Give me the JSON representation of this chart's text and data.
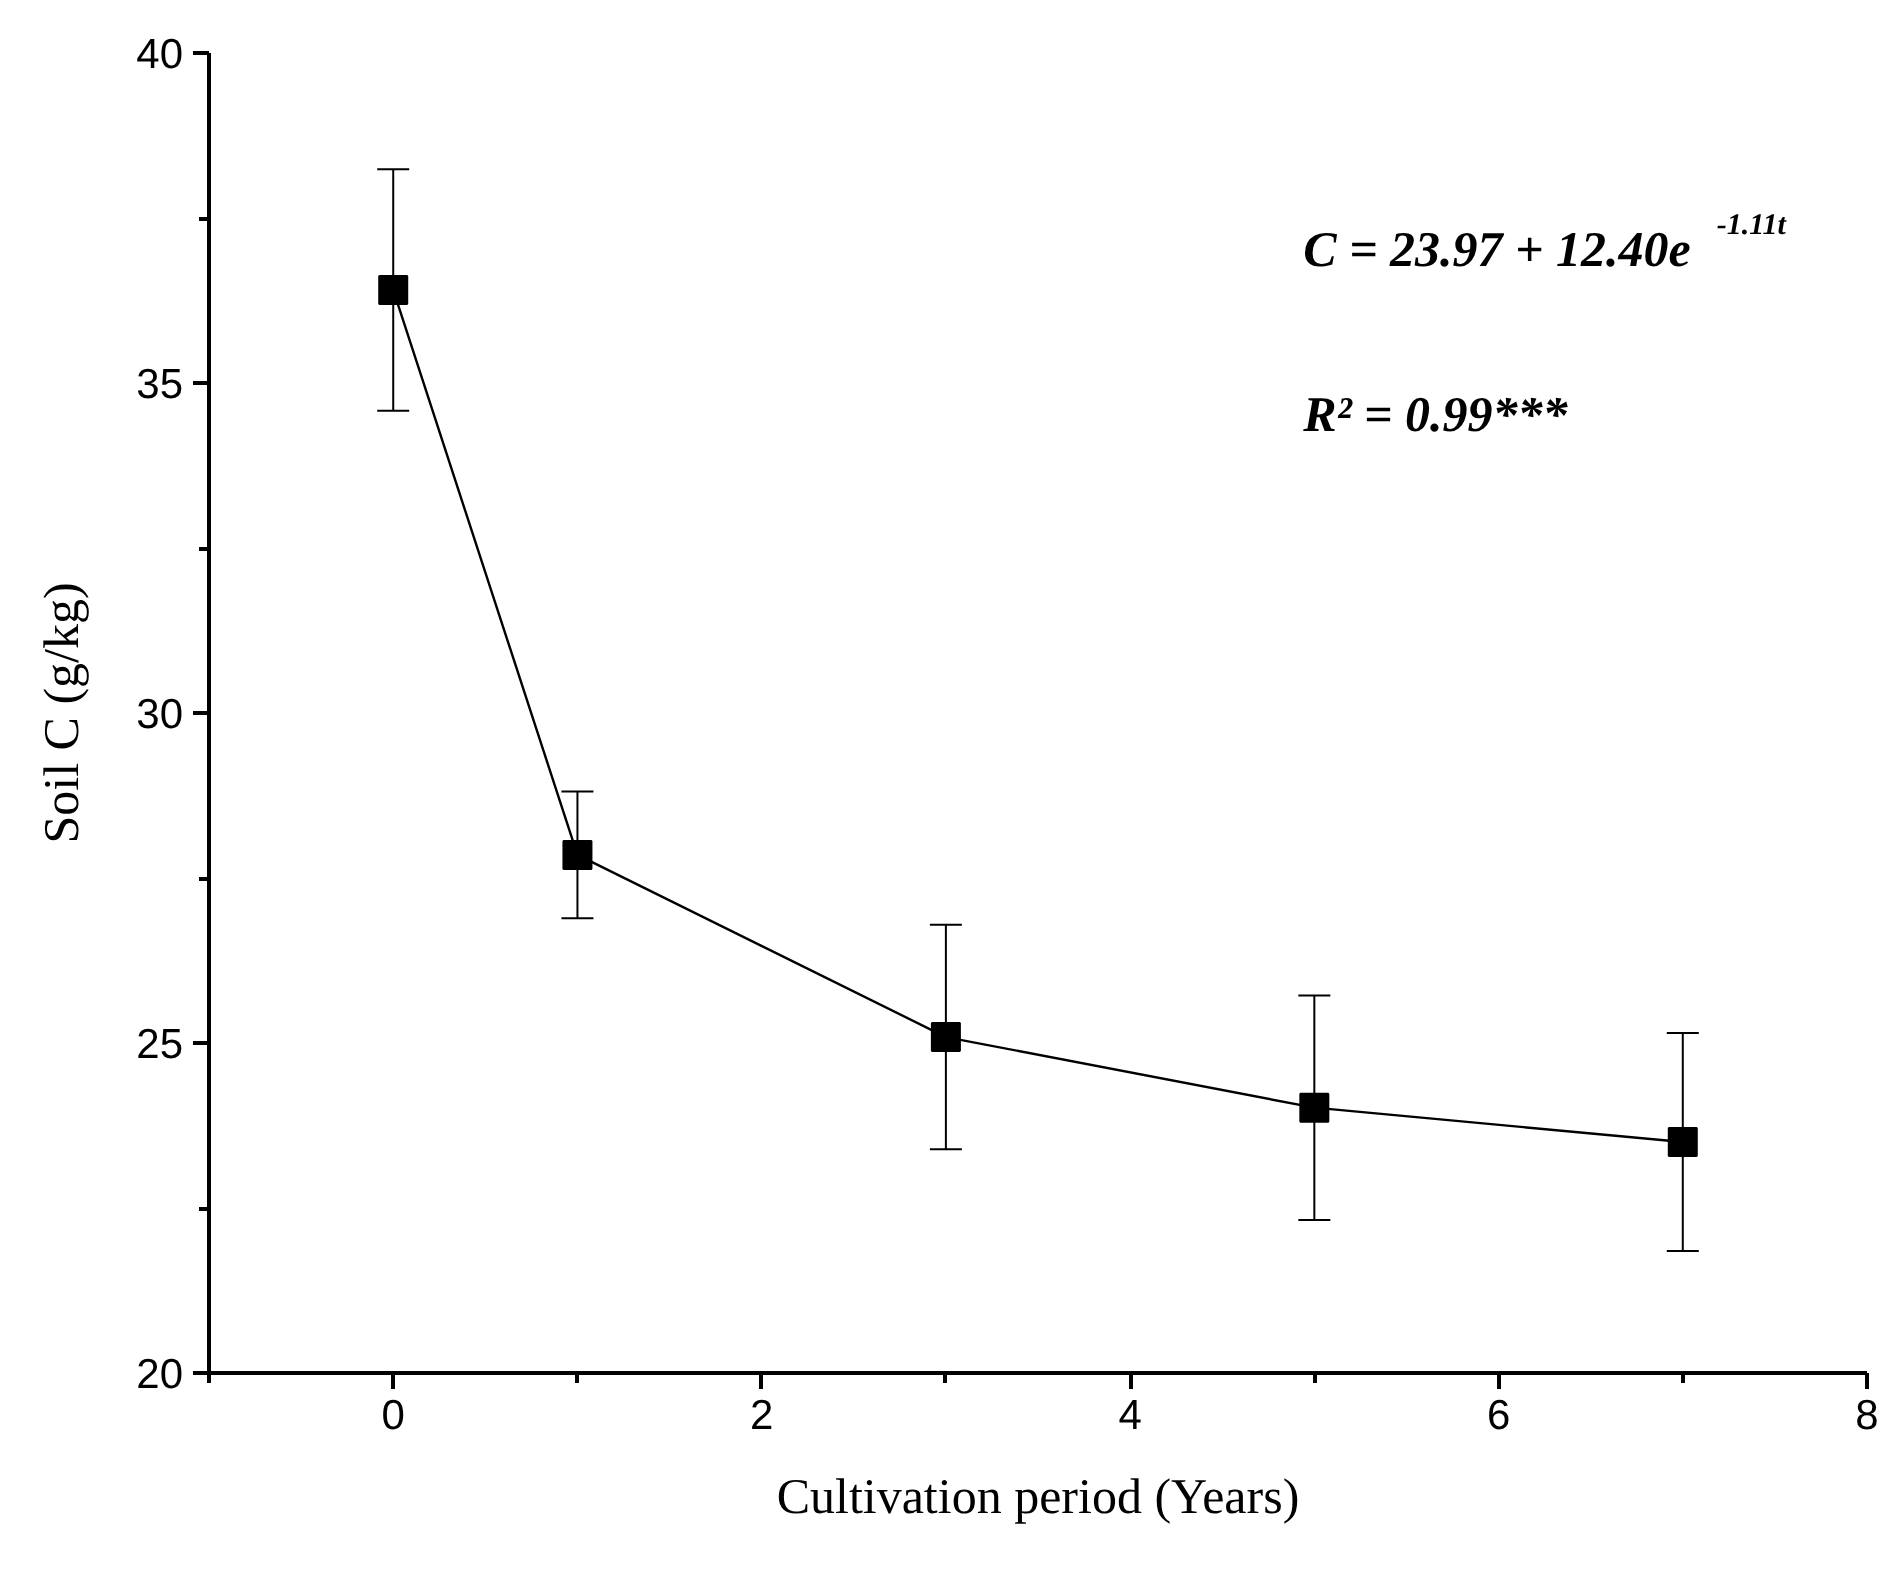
{
  "chart_data": {
    "type": "line",
    "xlabel": "Cultivation period (Years)",
    "ylabel": "Soil C (g/kg)",
    "x": [
      0,
      1,
      3,
      5,
      7
    ],
    "series": [
      {
        "color": "#000000",
        "values": [
          36.41,
          27.85,
          25.09,
          24.02,
          23.5
        ],
        "errors": [
          1.83,
          0.96,
          1.7,
          1.7,
          1.65
        ]
      }
    ],
    "marker": "square",
    "line_style": "solid",
    "grid": false,
    "xlim": [
      -1,
      8
    ],
    "xticks": [
      {
        "value": -1,
        "label": null
      },
      0,
      {
        "value": 1,
        "label": null
      },
      2,
      {
        "value": 3,
        "label": null
      },
      4,
      {
        "value": 5,
        "label": null
      },
      6,
      {
        "value": 7,
        "label": null
      },
      8
    ],
    "ylim": [
      20,
      40
    ],
    "yticks": [
      20,
      {
        "value": 22.5,
        "label": null
      },
      25,
      {
        "value": 27.5,
        "label": null
      },
      30,
      {
        "value": 32.5,
        "label": null
      },
      35,
      {
        "value": 37.5,
        "label": null
      },
      40
    ],
    "annotations": [
      "C = 23.97 + 12.40e$^{-1.11t}$",
      "R² = 0.99***"
    ]
  }
}
